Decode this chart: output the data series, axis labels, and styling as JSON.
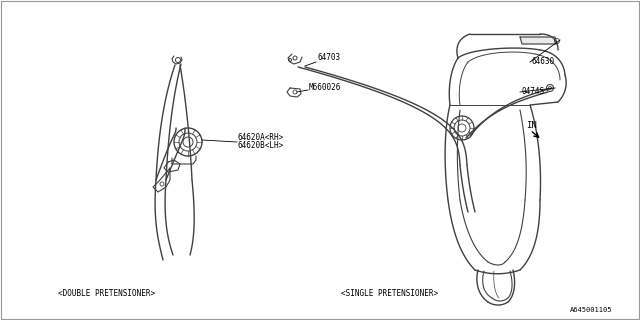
{
  "background_color": "#ffffff",
  "line_color": "#404040",
  "text_color": "#000000",
  "label_64703": "64703",
  "label_M660026": "M660026",
  "label_64620A": "64620A<RH>",
  "label_64620B": "64620B<LH>",
  "label_0474S": "0474S",
  "label_64630": "64630",
  "label_double": "<DOUBLE PRETENSIONER>",
  "label_single": "<SINGLE PRETENSIONER>",
  "label_diagram_id": "A645001105",
  "label_IN": "IN"
}
